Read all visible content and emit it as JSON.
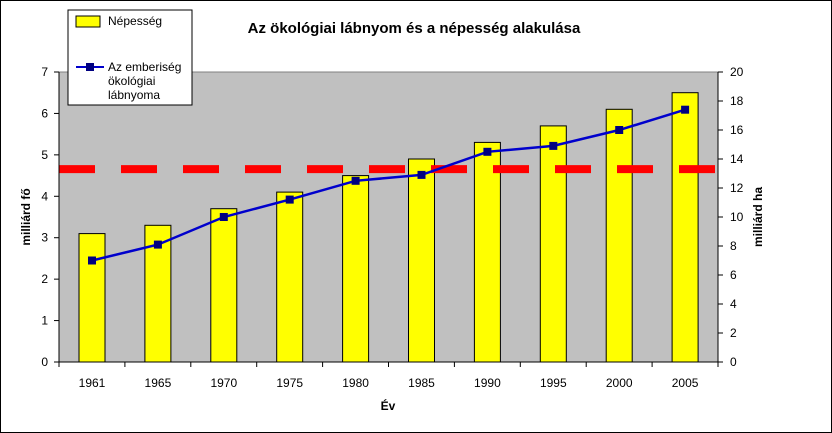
{
  "chart_data": {
    "type": "bar",
    "title": "Az ökológiai lábnyom és a népesség alakulása",
    "xlabel": "Év",
    "ylabel": "milliárd fő",
    "y2label": "milliárd ha",
    "categories": [
      "1961",
      "1965",
      "1970",
      "1975",
      "1980",
      "1985",
      "1990",
      "1995",
      "2000",
      "2005"
    ],
    "ylim": [
      0,
      7
    ],
    "yticks": [
      "0",
      "1",
      "2",
      "3",
      "4",
      "5",
      "6",
      "7"
    ],
    "y2lim": [
      0,
      20
    ],
    "y2ticks": [
      "0",
      "2",
      "4",
      "6",
      "8",
      "10",
      "12",
      "14",
      "16",
      "18",
      "20"
    ],
    "series": [
      {
        "name": "Népesség",
        "type": "bar",
        "axis": "left",
        "color": "#ffff00",
        "values": [
          3.1,
          3.3,
          3.7,
          4.1,
          4.5,
          4.9,
          5.3,
          5.7,
          6.1,
          6.5
        ]
      },
      {
        "name": "Az emberiség ökológiai lábnyoma",
        "name_lines": [
          "Az emberiség",
          "ökológiai",
          "lábnyoma"
        ],
        "type": "line",
        "axis": "right",
        "color": "#0000cc",
        "marker_color": "#000080",
        "values": [
          7.0,
          8.1,
          10.0,
          11.2,
          12.5,
          12.9,
          14.5,
          14.9,
          16.0,
          17.4
        ]
      }
    ],
    "reference_line": {
      "axis": "right",
      "value": 13.3,
      "color": "#ff0000",
      "style": "dashed"
    },
    "plot_background": "#c0c0c0",
    "grid": false,
    "legend_position": "top-left"
  }
}
